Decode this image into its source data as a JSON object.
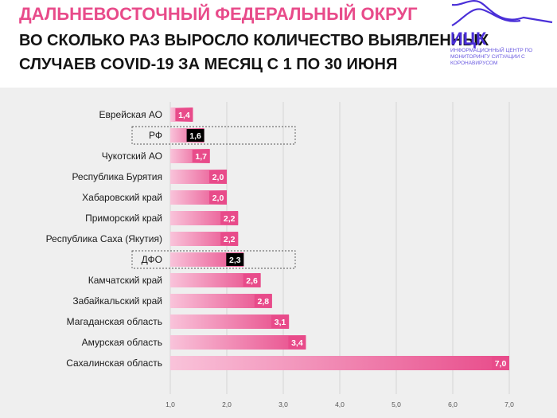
{
  "header": {
    "title_line1": "ДАЛЬНЕВОСТОЧНЫЙ ФЕДЕРАЛЬНЫЙ ОКРУГ",
    "title_line2": "ВО СКОЛЬКО РАЗ ВЫРОСЛО КОЛИЧЕСТВО ВЫЯВЛЕННЫХ",
    "title_line3": "СЛУЧАЕВ COVID-19 ЗА МЕСЯЦ С 1 ПО 30 ИЮНЯ"
  },
  "logo": {
    "name": "ИЦК",
    "subtitle": "ИНФОРМАЦИОННЫЙ ЦЕНТР ПО МОНИТОРИНГУ СИТУАЦИИ С КОРОНАВИРУСОМ",
    "color": "#4a2fd8"
  },
  "colors": {
    "accent": "#e84b8a",
    "bar_light": "#f9c3da",
    "highlight_label_bg": "#000000"
  },
  "chart_data": {
    "type": "bar",
    "orientation": "horizontal",
    "categories": [
      "Еврейская АО",
      "РФ",
      "Чукотский АО",
      "Республика Бурятия",
      "Хабаровский край",
      "Приморский край",
      "Республика Саха (Якутия)",
      "ДФО",
      "Камчатский край",
      "Забайкальский край",
      "Магаданская область",
      "Амурская область",
      "Сахалинская область"
    ],
    "values": [
      1.4,
      1.6,
      1.7,
      2.0,
      2.0,
      2.2,
      2.2,
      2.3,
      2.6,
      2.8,
      3.1,
      3.4,
      7.0
    ],
    "value_labels": [
      "1,4",
      "1,6",
      "1,7",
      "2,0",
      "2,0",
      "2,2",
      "2,2",
      "2,3",
      "2,6",
      "2,8",
      "3,1",
      "3,4",
      "7,0"
    ],
    "highlighted": [
      "РФ",
      "ДФО"
    ],
    "xlim": [
      1.0,
      7.0
    ],
    "xticks": [
      "1,0",
      "2,0",
      "3,0",
      "4,0",
      "5,0",
      "6,0",
      "7,0"
    ],
    "xtick_values": [
      1,
      2,
      3,
      4,
      5,
      6,
      7
    ],
    "grid": true,
    "title": "ДАЛЬНЕВОСТОЧНЫЙ ФЕДЕРАЛЬНЫЙ ОКРУГ",
    "xlabel": "",
    "ylabel": ""
  }
}
